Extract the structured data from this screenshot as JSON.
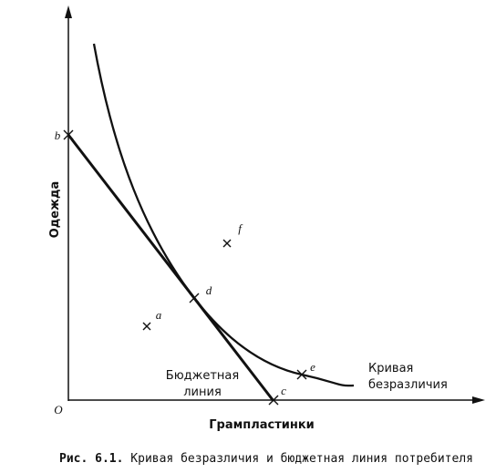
{
  "axes": {
    "y_label": "Одежда",
    "x_label": "Грампластинки",
    "origin": "O"
  },
  "points": {
    "a": "a",
    "b": "b",
    "c": "c",
    "d": "d",
    "e": "e",
    "f": "f"
  },
  "labels": {
    "budget_line": [
      "Бюджетная",
      "линия"
    ],
    "indifference_curve": [
      "Кривая",
      "безразличия"
    ]
  },
  "caption": {
    "number": "Рис. 6.1.",
    "text": "Кривая безразличия и бюджетная линия потребителя"
  }
}
